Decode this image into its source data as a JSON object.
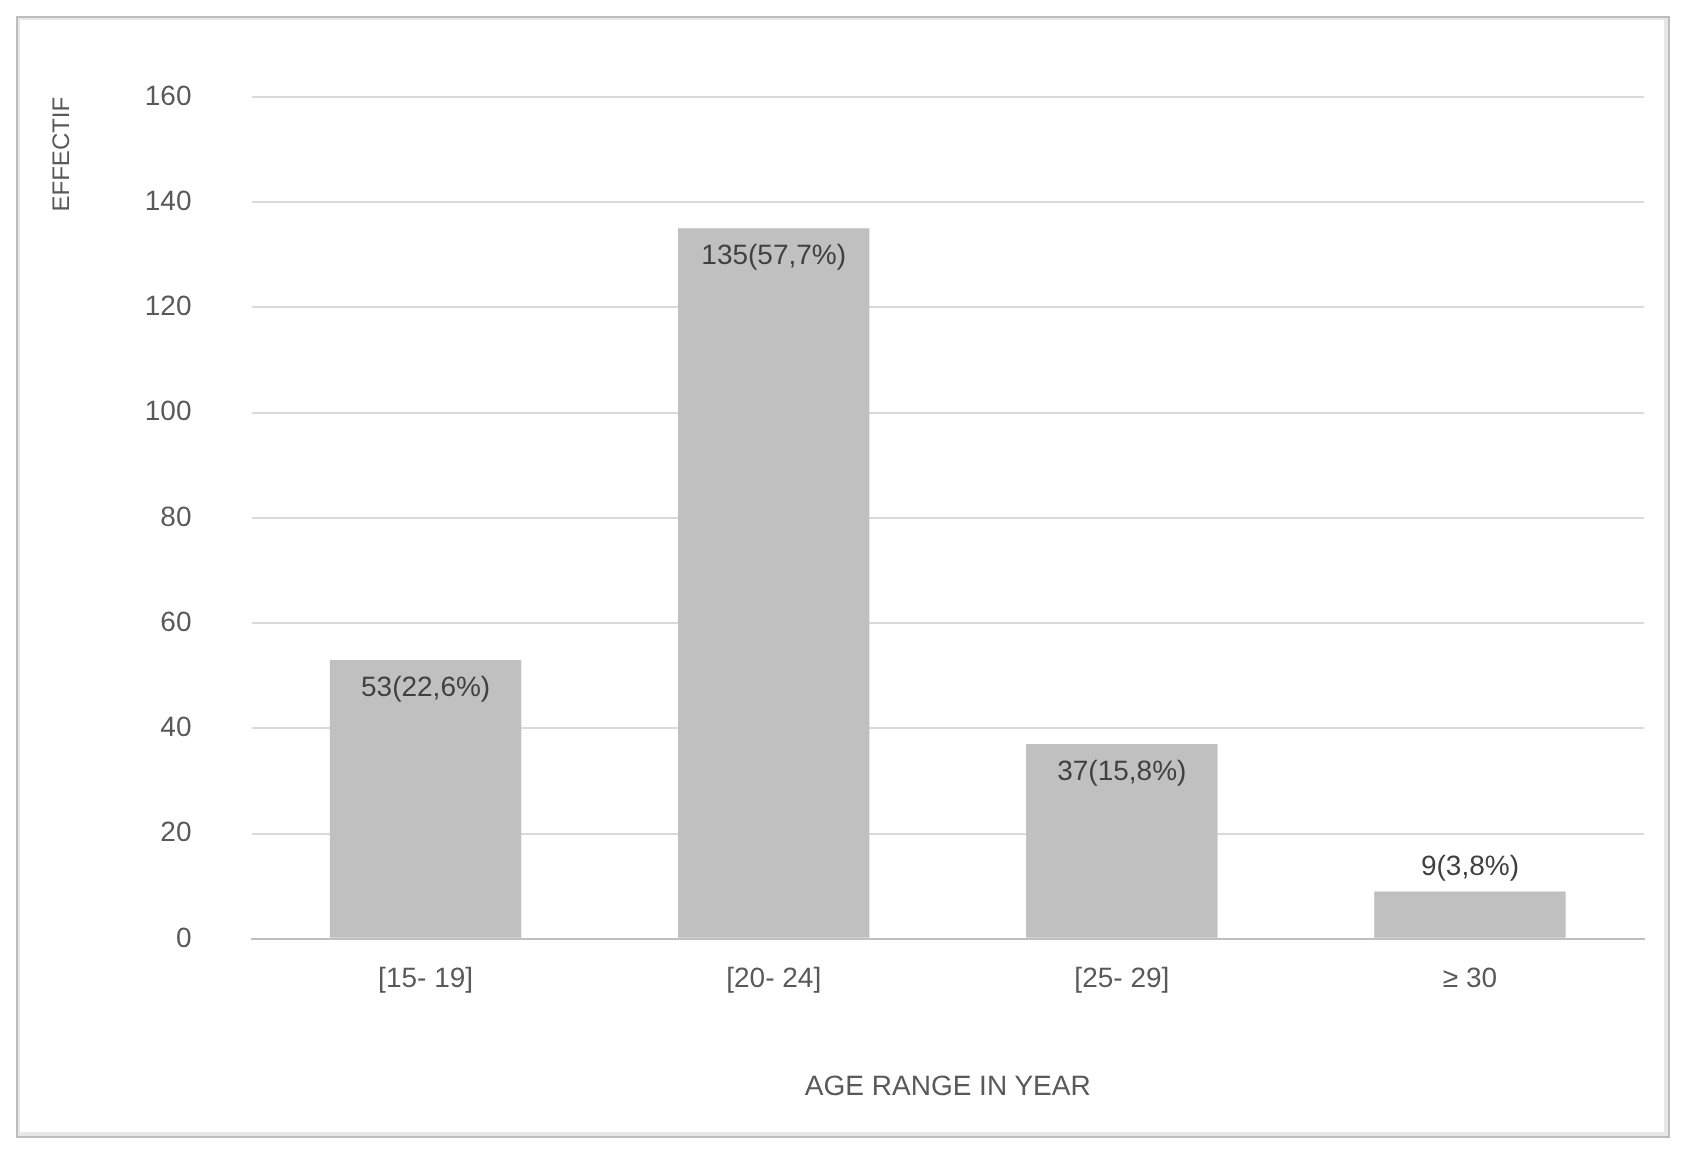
{
  "chart_data": {
    "type": "bar",
    "xlabel": "AGE RANGE IN YEAR",
    "ylabel": "EFFECTIF",
    "categories": [
      "[15- 19]",
      "[20- 24]",
      "[25- 29]",
      "≥ 30"
    ],
    "values": [
      53,
      135,
      37,
      9
    ],
    "color": "#c0c0c0",
    "value_labels": [
      "53(22,6%)",
      "135(57,7%)",
      "37(15,8%)",
      "9(3,8%)"
    ],
    "ylim": [
      0,
      160
    ],
    "yticks": [
      0,
      20,
      40,
      60,
      80,
      100,
      120,
      140,
      160
    ],
    "grid": "y"
  }
}
